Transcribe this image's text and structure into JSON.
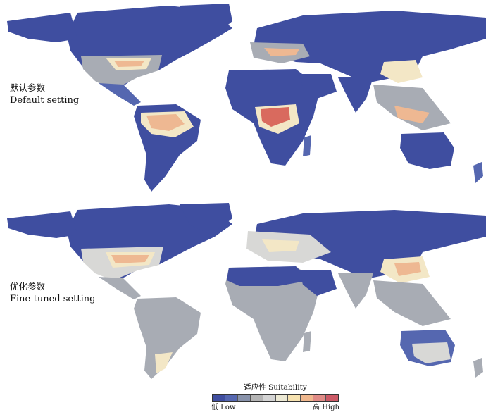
{
  "panels": {
    "top": {
      "label_zh": "默认参数",
      "label_en": "Default setting"
    },
    "bottom": {
      "label_zh": "优化参数",
      "label_en": "Fine-tuned setting"
    }
  },
  "legend": {
    "title": "适应性 Suitability",
    "low": "低 Low",
    "high": "高 High",
    "colors": [
      "#3f4ea0",
      "#5567b0",
      "#8892aa",
      "#b4b4b4",
      "#d4d4d4",
      "#ece9d4",
      "#f6e2b0",
      "#f0b88e",
      "#e08b86",
      "#cc5a66"
    ]
  },
  "colors": {
    "land_low": "#3f4ea0",
    "land_gray": "#a8acb4",
    "land_light": "#d8d8d6",
    "cream": "#f3e7c6",
    "warm": "#eeb892",
    "hot": "#d96a5e"
  }
}
